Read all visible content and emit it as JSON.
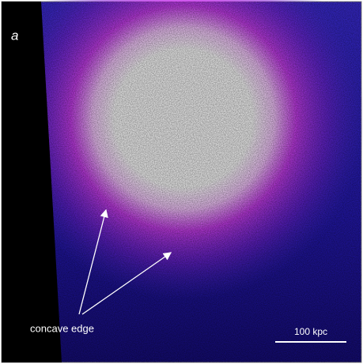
{
  "panel_label": "a",
  "annotation": "concave edge",
  "scale_bar_label": "100 kpc"
}
